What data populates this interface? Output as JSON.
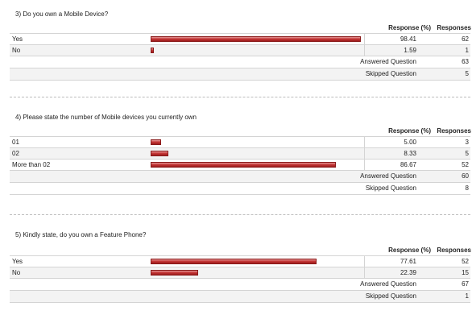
{
  "headers": {
    "response_pct": "Response (%)",
    "responses": "Responses"
  },
  "questions": [
    {
      "title": "3)  Do you own a Mobile Device?",
      "rows": [
        {
          "label": "Yes",
          "pct": "98.41",
          "count": "62",
          "fraction": 0.9841
        },
        {
          "label": "No",
          "pct": "1.59",
          "count": "1",
          "fraction": 0.0159
        }
      ],
      "answered_label": "Answered Question",
      "answered": "63",
      "skipped_label": "Skipped Question",
      "skipped": "5"
    },
    {
      "title": "4)  Please state the number of Mobile devices you currently own",
      "rows": [
        {
          "label": "01",
          "pct": "5.00",
          "count": "3",
          "fraction": 0.05
        },
        {
          "label": "02",
          "pct": "8.33",
          "count": "5",
          "fraction": 0.0833
        },
        {
          "label": "More than 02",
          "pct": "86.67",
          "count": "52",
          "fraction": 0.8667
        }
      ],
      "answered_label": "Answered Question",
      "answered": "60",
      "skipped_label": "Skipped Question",
      "skipped": "8"
    },
    {
      "title": "5)  Kindly state, do you own a Feature Phone?",
      "rows": [
        {
          "label": "Yes",
          "pct": "77.61",
          "count": "52",
          "fraction": 0.7761
        },
        {
          "label": "No",
          "pct": "22.39",
          "count": "15",
          "fraction": 0.2239
        }
      ],
      "answered_label": "Answered Question",
      "answered": "67",
      "skipped_label": "Skipped Question",
      "skipped": "1"
    }
  ],
  "colors": {
    "bar": "#c53838",
    "row_alt": "#f3f3f3",
    "border": "#d4d4d4"
  }
}
